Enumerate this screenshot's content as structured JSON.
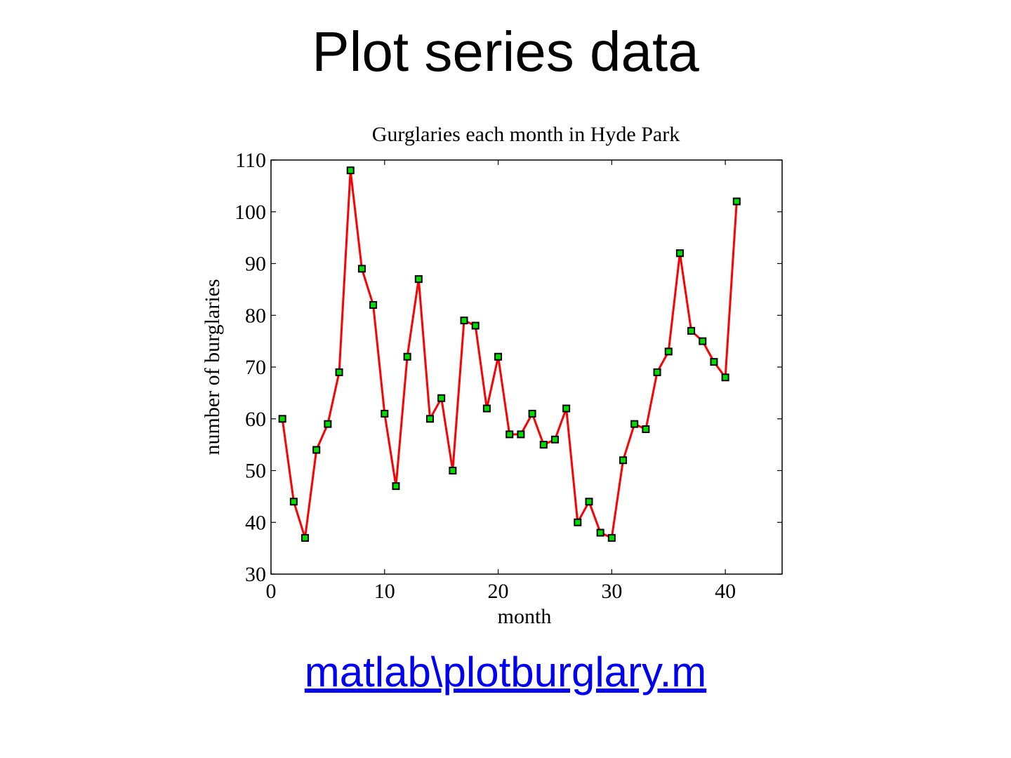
{
  "slide": {
    "title": "Plot series data",
    "link_text": "matlab\\plotburglary.m"
  },
  "colors": {
    "line": "#ff0000",
    "marker_fill": "#00dd00",
    "marker_edge": "#000000",
    "link": "#0000ee"
  },
  "chart_data": {
    "type": "line",
    "title": "Gurglaries each month in Hyde Park",
    "xlabel": "month",
    "ylabel": "number of burglaries",
    "xlim": [
      0,
      45
    ],
    "ylim": [
      30,
      110
    ],
    "xticks": [
      0,
      10,
      20,
      30,
      40
    ],
    "yticks": [
      30,
      40,
      50,
      60,
      70,
      80,
      90,
      100,
      110
    ],
    "grid": false,
    "marker": "square",
    "series": [
      {
        "x": [
          1,
          2,
          3,
          4,
          5,
          6,
          7,
          8,
          9,
          10,
          11,
          12,
          13,
          14,
          15,
          16,
          17,
          18,
          19,
          20,
          21,
          22,
          23,
          24,
          25,
          26,
          27,
          28,
          29,
          30,
          31,
          32,
          33,
          34,
          35,
          36,
          37,
          38,
          39,
          40,
          41
        ],
        "values": [
          60,
          44,
          37,
          54,
          59,
          69,
          108,
          89,
          82,
          61,
          47,
          72,
          87,
          60,
          64,
          50,
          79,
          78,
          62,
          72,
          57,
          57,
          61,
          55,
          56,
          62,
          40,
          44,
          38,
          37,
          52,
          59,
          58,
          69,
          73,
          92,
          77,
          75,
          71,
          68,
          102
        ]
      }
    ]
  }
}
